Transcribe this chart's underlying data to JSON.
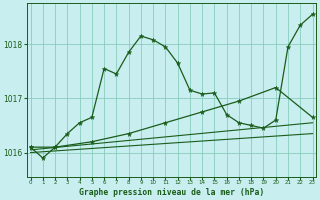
{
  "bg_color": "#c8eef0",
  "line_color": "#1a5c1a",
  "grid_color": "#88ccbb",
  "series1": {
    "x": [
      0,
      1,
      2,
      3,
      4,
      5,
      6,
      7,
      8,
      9,
      10,
      11,
      12,
      13,
      14,
      15,
      16,
      17,
      18,
      19,
      20,
      21,
      22,
      23
    ],
    "y": [
      1016.1,
      1015.9,
      1016.1,
      1016.35,
      1016.55,
      1016.65,
      1017.55,
      1017.45,
      1017.85,
      1018.15,
      1018.08,
      1017.95,
      1017.65,
      1017.15,
      1017.08,
      1017.1,
      1016.7,
      1016.55,
      1016.5,
      1016.45,
      1016.6,
      1017.95,
      1018.35,
      1018.55
    ]
  },
  "series2": {
    "x": [
      0,
      2,
      5,
      8,
      11,
      14,
      17,
      20,
      23
    ],
    "y": [
      1016.1,
      1016.1,
      1016.2,
      1016.35,
      1016.55,
      1016.75,
      1016.95,
      1017.2,
      1016.65
    ]
  },
  "series3": {
    "x": [
      0,
      23
    ],
    "y": [
      1016.05,
      1016.55
    ]
  },
  "series4": {
    "x": [
      0,
      23
    ],
    "y": [
      1016.0,
      1016.35
    ]
  },
  "ylim": [
    1015.55,
    1018.75
  ],
  "yticks": [
    1016,
    1017,
    1018
  ],
  "xlim": [
    -0.3,
    23.3
  ],
  "xticks": [
    0,
    1,
    2,
    3,
    4,
    5,
    6,
    7,
    8,
    9,
    10,
    11,
    12,
    13,
    14,
    15,
    16,
    17,
    18,
    19,
    20,
    21,
    22,
    23
  ],
  "xlabel": "Graphe pression niveau de la mer (hPa)"
}
